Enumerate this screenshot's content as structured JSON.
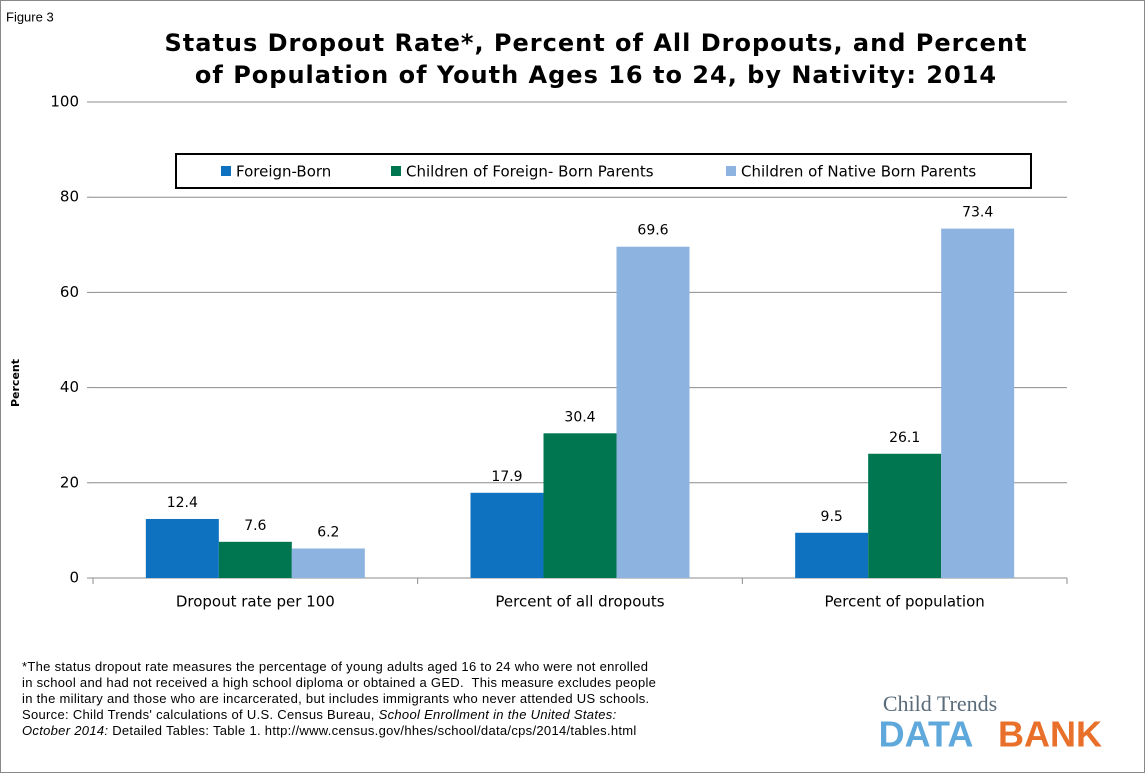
{
  "figure_label": "Figure 3",
  "chart_data": {
    "type": "grouped_bar",
    "title": [
      "Status Dropout Rate*, Percent of All Dropouts, and Percent",
      "of Population of Youth Ages 16 to 24, by Nativity: 2014"
    ],
    "y_label": "Percent",
    "categories": [
      "Dropout rate per 100",
      "Percent of all dropouts",
      "Percent of population"
    ],
    "series": [
      {
        "name": "Foreign-Born",
        "color": "#0f72c1",
        "values": [
          12.4,
          17.9,
          9.5
        ]
      },
      {
        "name": "Children of Foreign- Born Parents",
        "color": "#007650",
        "values": [
          7.6,
          30.4,
          26.1
        ]
      },
      {
        "name": "Children of Native Born Parents",
        "color": "#8db3e0",
        "values": [
          6.2,
          69.6,
          73.4
        ]
      }
    ],
    "ylim": [
      0,
      100
    ],
    "yticks": [
      0,
      20,
      40,
      60,
      80,
      100
    ],
    "grid": true,
    "legend": "top"
  },
  "footnote": [
    [
      {
        "text": "*The status dropout rate measures the percentage of young adults aged 16 to 24 who were not enrolled"
      }
    ],
    [
      {
        "text": "in school and had not received a high school diploma or obtained a GED.  This measure excludes people"
      }
    ],
    [
      {
        "text": "in the military and those who are incarcerated, but includes immigrants who never attended US schools."
      }
    ],
    [
      {
        "text": "Source: Child Trends' calculations of U.S. Census Bureau, "
      },
      {
        "text": "School Enrollment in the United States:",
        "italic": true
      }
    ],
    [
      {
        "text": "October 2014:",
        "italic": true
      },
      {
        "text": " Detailed Tables: Table 1. http://www.census.gov/hhes/school/data/cps/2014/tables.html"
      }
    ]
  ],
  "logo": {
    "top": "Child Trends",
    "data": "DATA",
    "bank": "BANK"
  }
}
